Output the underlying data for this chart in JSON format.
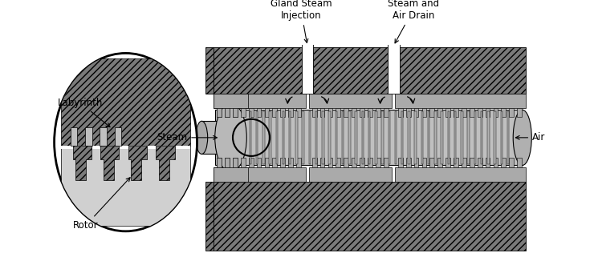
{
  "bg_color": "#ffffff",
  "fig_width": 7.4,
  "fig_height": 3.16,
  "dpi": 100,
  "labels": {
    "labyrinth": "Labyrinth",
    "rotor": "Rotor",
    "steam": "Steam",
    "air": "Air",
    "gland_steam": "Gland Steam\nInjection",
    "steam_air_drain": "Steam and\nAir Drain"
  },
  "hatch_dense": "////",
  "fc_dark": "#7a7a7a",
  "fc_mid": "#aaaaaa",
  "fc_light": "#cccccc",
  "fc_rotor": "#c0c0c0",
  "fc_white": "#ffffff"
}
